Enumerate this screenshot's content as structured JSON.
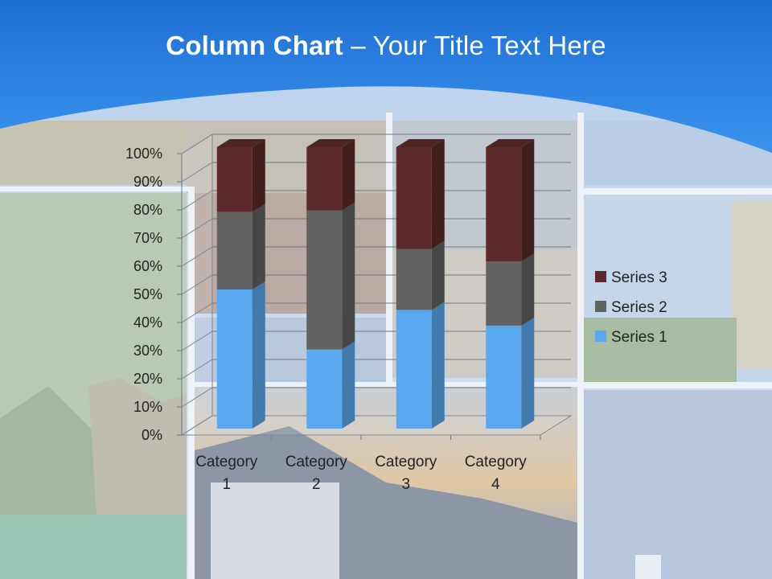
{
  "slide": {
    "title_bold": "Column Chart",
    "title_rest": " – Your Title Text Here"
  },
  "colors": {
    "header_blue": "#2f86e6",
    "series_1": "#5aa9f0",
    "series_2": "#626262",
    "series_3": "#5c2a2a"
  },
  "chart_data": {
    "type": "bar",
    "stacked": "percent",
    "categories": [
      "Category 1",
      "Category 2",
      "Category 3",
      "Category 4"
    ],
    "category_label_lines": [
      [
        "Category",
        "1"
      ],
      [
        "Category",
        "2"
      ],
      [
        "Category",
        "3"
      ],
      [
        "Category",
        "4"
      ]
    ],
    "series": [
      {
        "name": "Series 1",
        "values": [
          4.3,
          2.5,
          3.5,
          4.5
        ]
      },
      {
        "name": "Series 2",
        "values": [
          2.4,
          4.4,
          1.8,
          2.8
        ]
      },
      {
        "name": "Series 3",
        "values": [
          2,
          2,
          3,
          5
        ]
      }
    ],
    "y_ticks": [
      "0%",
      "10%",
      "20%",
      "30%",
      "40%",
      "50%",
      "60%",
      "70%",
      "80%",
      "90%",
      "100%"
    ],
    "ylim": [
      0,
      100
    ],
    "grid": true,
    "legend_position": "right",
    "legend_order": [
      "Series 3",
      "Series 2",
      "Series 1"
    ],
    "style": "3d-columns"
  }
}
